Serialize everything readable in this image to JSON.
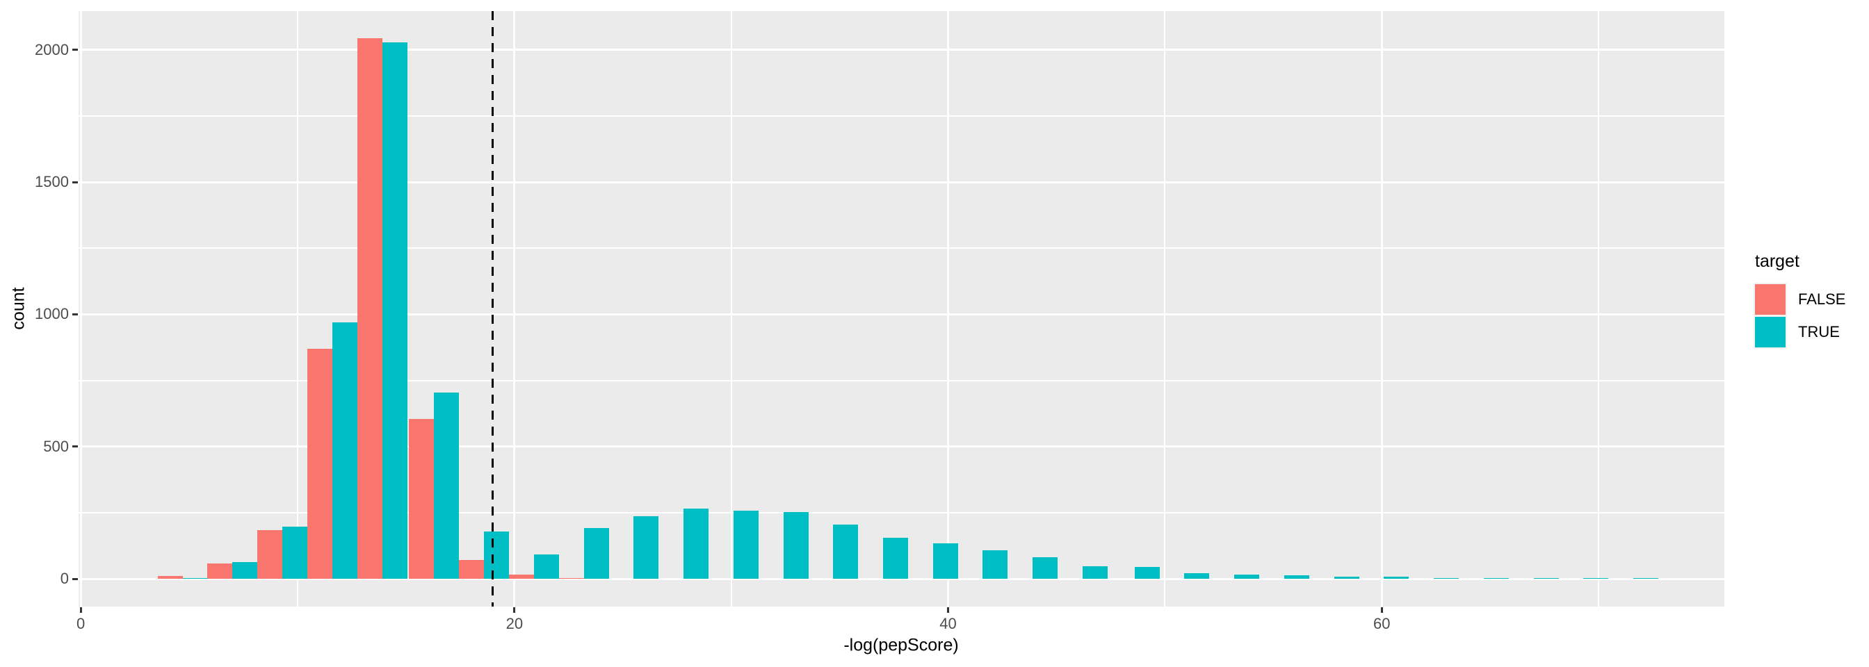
{
  "chart_data": {
    "type": "bar",
    "subtype": "dodged-histogram",
    "title": "",
    "xlabel": "-log(pepScore)",
    "ylabel": "count",
    "bin_width": 2.31,
    "categories": [
      4.7,
      7.0,
      9.3,
      11.6,
      13.9,
      16.3,
      18.6,
      20.9,
      23.2,
      25.5,
      27.8,
      30.1,
      32.4,
      34.7,
      37.0,
      39.3,
      41.6,
      43.9,
      46.2,
      48.6,
      50.9,
      53.2,
      55.5,
      57.8,
      60.1,
      62.4,
      64.7,
      67.0,
      69.3,
      71.6
    ],
    "series": [
      {
        "name": "FALSE",
        "color": "#F8766D",
        "values": [
          10,
          58,
          183,
          870,
          2045,
          605,
          70,
          15,
          4,
          0,
          0,
          0,
          0,
          0,
          0,
          0,
          0,
          0,
          0,
          0,
          0,
          0,
          0,
          0,
          0,
          0,
          0,
          0,
          0,
          0
        ]
      },
      {
        "name": "TRUE",
        "color": "#00BFC4",
        "values": [
          4,
          63,
          197,
          970,
          2030,
          705,
          180,
          92,
          192,
          237,
          266,
          258,
          252,
          205,
          155,
          134,
          108,
          82,
          48,
          45,
          20,
          15,
          13,
          8,
          8,
          3,
          3,
          3,
          3,
          3
        ]
      }
    ],
    "vline": {
      "x": 19,
      "style": "dashed",
      "color": "#000000"
    },
    "x_ticks": [
      0,
      20,
      40,
      60
    ],
    "x_minor": [
      10,
      30,
      50,
      70
    ],
    "y_ticks": [
      0,
      500,
      1000,
      1500,
      2000
    ],
    "y_minor": [
      250,
      750,
      1250,
      1750
    ],
    "xlim": [
      -0.1,
      75.8
    ],
    "ylim": [
      -105,
      2147
    ],
    "grid": true,
    "legend": {
      "title": "target",
      "position": "right",
      "entries": [
        {
          "label": "FALSE",
          "color": "#F8766D"
        },
        {
          "label": "TRUE",
          "color": "#00BFC4"
        }
      ]
    },
    "colors": {
      "panel_bg": "#EBEBEB",
      "grid": "#FFFFFF",
      "tick_label": "#4D4D4D",
      "axis_title": "#000000",
      "tick_mark": "#333333"
    }
  }
}
